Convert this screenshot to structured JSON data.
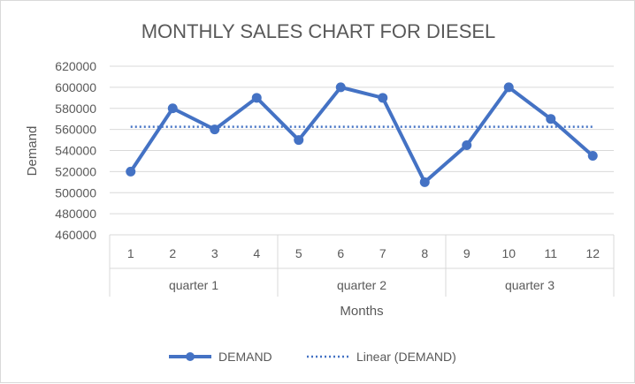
{
  "chart_data": {
    "type": "line",
    "title": "MONTHLY SALES CHART FOR DIESEL",
    "xlabel": "Months",
    "ylabel": "Demand",
    "categories": [
      "1",
      "2",
      "3",
      "4",
      "5",
      "6",
      "7",
      "8",
      "9",
      "10",
      "11",
      "12"
    ],
    "groups": [
      {
        "label": "quarter 1",
        "span": 4
      },
      {
        "label": "quarter 2",
        "span": 4
      },
      {
        "label": "quarter 3",
        "span": 4
      }
    ],
    "series": [
      {
        "name": "DEMAND",
        "values": [
          520000,
          580000,
          560000,
          590000,
          550000,
          600000,
          590000,
          510000,
          545000,
          600000,
          570000,
          535000
        ],
        "color": "#4472C4"
      }
    ],
    "trendline": {
      "name": "Linear (DEMAND)",
      "type": "linear",
      "value": 562500,
      "style": "dotted",
      "color": "#4472C4"
    },
    "ylim": [
      460000,
      620000
    ],
    "yticks": [
      "460000",
      "480000",
      "500000",
      "520000",
      "540000",
      "560000",
      "580000",
      "600000",
      "620000"
    ],
    "grid": true,
    "legend": "bottom"
  }
}
